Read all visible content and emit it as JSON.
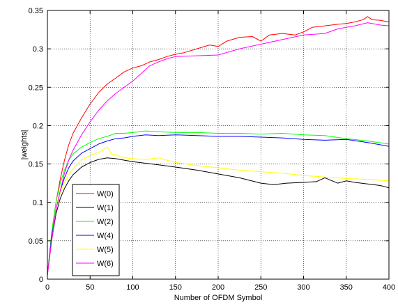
{
  "chart_data": {
    "type": "line",
    "xlabel": "Number of OFDM Symbol",
    "ylabel": "|weights|",
    "xlim": [
      0,
      400
    ],
    "ylim": [
      0,
      0.35
    ],
    "xticks": [
      0,
      50,
      100,
      150,
      200,
      250,
      300,
      350,
      400
    ],
    "yticks": [
      0,
      0.05,
      0.1,
      0.15,
      0.2,
      0.25,
      0.3,
      0.35
    ],
    "xtick_labels": [
      "0",
      "50",
      "100",
      "150",
      "200",
      "250",
      "300",
      "350",
      "400"
    ],
    "ytick_labels": [
      "0",
      "0.05",
      "0.1",
      "0.15",
      "0.2",
      "0.25",
      "0.3",
      "0.35"
    ],
    "grid": true,
    "grid_style": "dotted",
    "legend_position": "bottom-left",
    "series": [
      {
        "name": "W(0)",
        "color": "#ff0000",
        "x": [
          0,
          5,
          10,
          15,
          20,
          25,
          30,
          40,
          50,
          60,
          70,
          80,
          90,
          100,
          110,
          120,
          130,
          140,
          150,
          160,
          175,
          190,
          200,
          210,
          225,
          240,
          250,
          260,
          275,
          290,
          300,
          310,
          325,
          340,
          350,
          360,
          370,
          375,
          380,
          390,
          400
        ],
        "y": [
          0.005,
          0.06,
          0.1,
          0.13,
          0.155,
          0.175,
          0.19,
          0.21,
          0.228,
          0.243,
          0.254,
          0.262,
          0.27,
          0.275,
          0.278,
          0.283,
          0.286,
          0.29,
          0.293,
          0.295,
          0.3,
          0.305,
          0.303,
          0.31,
          0.315,
          0.316,
          0.31,
          0.318,
          0.32,
          0.318,
          0.322,
          0.328,
          0.33,
          0.332,
          0.333,
          0.335,
          0.338,
          0.342,
          0.338,
          0.337,
          0.335
        ]
      },
      {
        "name": "W(1)",
        "color": "#000000",
        "x": [
          0,
          5,
          10,
          15,
          20,
          25,
          30,
          40,
          50,
          60,
          70,
          80,
          90,
          100,
          115,
          130,
          150,
          175,
          200,
          225,
          250,
          265,
          280,
          300,
          315,
          325,
          340,
          350,
          360,
          375,
          390,
          400
        ],
        "y": [
          0.005,
          0.05,
          0.085,
          0.105,
          0.118,
          0.128,
          0.136,
          0.146,
          0.152,
          0.156,
          0.158,
          0.157,
          0.155,
          0.153,
          0.151,
          0.149,
          0.146,
          0.142,
          0.137,
          0.132,
          0.125,
          0.123,
          0.125,
          0.126,
          0.127,
          0.132,
          0.125,
          0.128,
          0.126,
          0.124,
          0.122,
          0.119
        ]
      },
      {
        "name": "W(2)",
        "color": "#00ff00",
        "x": [
          0,
          5,
          10,
          15,
          20,
          25,
          30,
          40,
          50,
          60,
          70,
          80,
          90,
          100,
          115,
          130,
          150,
          175,
          200,
          225,
          250,
          275,
          300,
          325,
          350,
          375,
          400
        ],
        "y": [
          0.005,
          0.06,
          0.1,
          0.125,
          0.142,
          0.155,
          0.163,
          0.172,
          0.178,
          0.183,
          0.186,
          0.19,
          0.19,
          0.191,
          0.193,
          0.192,
          0.191,
          0.191,
          0.19,
          0.19,
          0.189,
          0.19,
          0.188,
          0.187,
          0.183,
          0.18,
          0.176
        ]
      },
      {
        "name": "W(4)",
        "color": "#0000ff",
        "x": [
          0,
          5,
          10,
          15,
          20,
          25,
          30,
          40,
          50,
          60,
          70,
          80,
          90,
          100,
          115,
          130,
          150,
          175,
          200,
          225,
          250,
          275,
          300,
          325,
          350,
          375,
          390,
          400
        ],
        "y": [
          0.005,
          0.055,
          0.09,
          0.115,
          0.132,
          0.145,
          0.154,
          0.164,
          0.17,
          0.176,
          0.18,
          0.183,
          0.184,
          0.186,
          0.188,
          0.187,
          0.188,
          0.187,
          0.186,
          0.186,
          0.185,
          0.184,
          0.182,
          0.181,
          0.182,
          0.178,
          0.175,
          0.173
        ]
      },
      {
        "name": "W(5)",
        "color": "#ffff00",
        "x": [
          0,
          5,
          10,
          15,
          20,
          25,
          30,
          40,
          50,
          60,
          65,
          70,
          75,
          80,
          90,
          100,
          115,
          130,
          150,
          175,
          200,
          225,
          250,
          275,
          300,
          325,
          350,
          375,
          400
        ],
        "y": [
          0.005,
          0.05,
          0.09,
          0.112,
          0.126,
          0.136,
          0.144,
          0.155,
          0.161,
          0.165,
          0.168,
          0.172,
          0.163,
          0.162,
          0.158,
          0.157,
          0.156,
          0.158,
          0.152,
          0.148,
          0.145,
          0.142,
          0.14,
          0.138,
          0.135,
          0.133,
          0.131,
          0.13,
          0.128
        ]
      },
      {
        "name": "W(6)",
        "color": "#ff00ff",
        "x": [
          0,
          5,
          10,
          15,
          20,
          25,
          30,
          40,
          50,
          60,
          70,
          80,
          90,
          100,
          110,
          120,
          130,
          140,
          150,
          175,
          200,
          225,
          250,
          275,
          300,
          325,
          340,
          350,
          360,
          375,
          390,
          400
        ],
        "y": [
          0.005,
          0.05,
          0.09,
          0.115,
          0.138,
          0.155,
          0.168,
          0.188,
          0.205,
          0.22,
          0.232,
          0.242,
          0.25,
          0.258,
          0.268,
          0.278,
          0.283,
          0.287,
          0.29,
          0.291,
          0.292,
          0.3,
          0.306,
          0.312,
          0.318,
          0.32,
          0.326,
          0.328,
          0.33,
          0.334,
          0.331,
          0.33
        ]
      }
    ]
  }
}
